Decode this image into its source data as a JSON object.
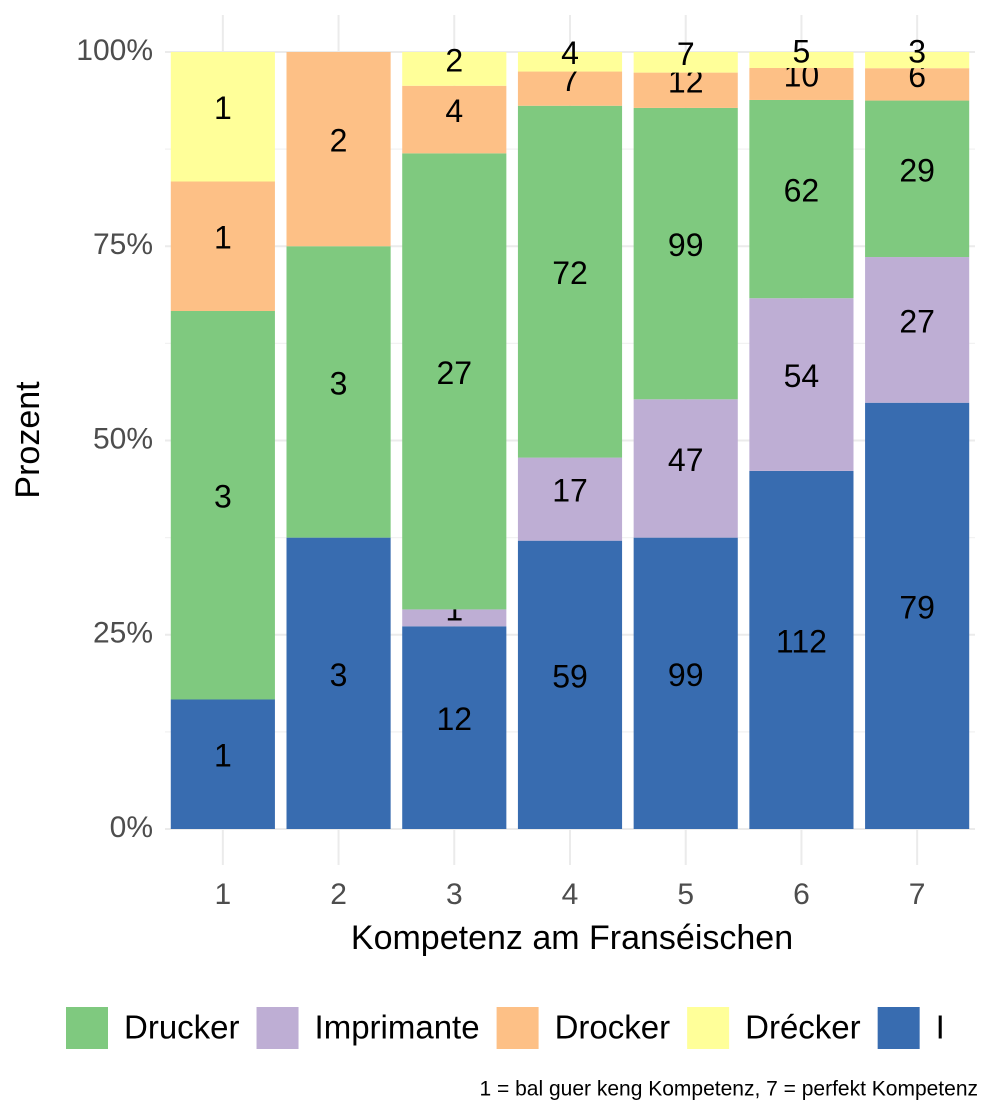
{
  "chart_data": {
    "type": "bar",
    "stack": "percent",
    "x_label": "Kompetenz am Franséischen",
    "y_label": "Prozent",
    "caption": "1 = bal guer keng Kompetenz, 7 = perfekt Kompetenz",
    "categories": [
      "1",
      "2",
      "3",
      "4",
      "5",
      "6",
      "7"
    ],
    "series": [
      {
        "name": "Drucker",
        "color": "#7fc97f",
        "values": [
          3,
          3,
          27,
          72,
          99,
          62,
          29
        ]
      },
      {
        "name": "Imprimante",
        "color": "#beaed4",
        "values": [
          null,
          null,
          1,
          17,
          47,
          54,
          27
        ]
      },
      {
        "name": "Drocker",
        "color": "#fdc086",
        "values": [
          1,
          2,
          4,
          7,
          12,
          10,
          6
        ]
      },
      {
        "name": "Drécker",
        "color": "#ffff99",
        "values": [
          1,
          null,
          2,
          4,
          7,
          5,
          3
        ]
      },
      {
        "name": "I",
        "color": "#386cb0",
        "values": [
          1,
          3,
          12,
          59,
          99,
          112,
          79
        ]
      }
    ],
    "ylim": [
      0,
      100
    ],
    "yticks": [
      {
        "value": 0,
        "label": "0%"
      },
      {
        "value": 25,
        "label": "25%"
      },
      {
        "value": 50,
        "label": "50%"
      },
      {
        "value": 75,
        "label": "75%"
      },
      {
        "value": 100,
        "label": "100%"
      }
    ],
    "grid": true,
    "legend": "bottom"
  }
}
